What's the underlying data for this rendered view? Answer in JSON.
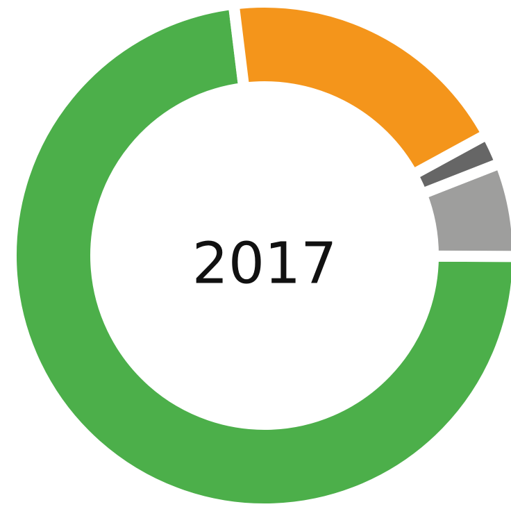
{
  "chart_data": {
    "type": "donut",
    "center_label": "2017",
    "values": [
      19,
      2,
      6,
      73
    ],
    "colors": [
      "#f4951b",
      "#666666",
      "#9e9e9d",
      "#4caf4a"
    ]
  }
}
